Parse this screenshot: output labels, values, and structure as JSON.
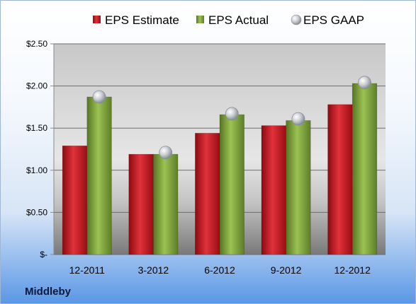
{
  "chart_data": {
    "type": "bar",
    "categories": [
      "12-2011",
      "3-2012",
      "6-2012",
      "9-2012",
      "12-2012"
    ],
    "series": [
      {
        "name": "EPS Estimate",
        "kind": "bar",
        "color": "#c0141c",
        "values": [
          1.29,
          1.19,
          1.44,
          1.53,
          1.78
        ]
      },
      {
        "name": "EPS Actual",
        "kind": "bar",
        "color": "#7da13a",
        "values": [
          1.87,
          1.19,
          1.66,
          1.59,
          2.03
        ]
      },
      {
        "name": "EPS GAAP",
        "kind": "marker",
        "color": "#b8bec6",
        "values": [
          1.87,
          1.21,
          1.67,
          1.61,
          2.04
        ]
      }
    ],
    "ylim": [
      0,
      2.5
    ],
    "yticks": [
      0,
      0.5,
      1.0,
      1.5,
      2.0,
      2.5
    ],
    "ytick_labels": [
      "$-",
      "$0.50",
      "$1.00",
      "$1.50",
      "$2.00",
      "$2.50"
    ],
    "grid": true,
    "legend_position": "top"
  },
  "footer": {
    "company": "Middleby"
  },
  "colors": {
    "estimate": "#c0141c",
    "actual": "#7da13a",
    "gaap": "#b8bec6"
  }
}
